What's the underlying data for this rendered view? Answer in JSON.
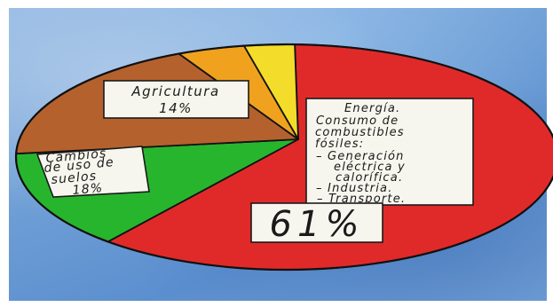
{
  "chart_data": {
    "type": "pie",
    "slices": [
      {
        "label": "Energía",
        "value": 61,
        "color": "#e02a2a"
      },
      {
        "label": "Agricultura",
        "value": 14,
        "color": "#27b52e"
      },
      {
        "label": "Cambios de uso de suelos",
        "value": 18,
        "color": "#b5612e"
      },
      {
        "label": "",
        "value": 4,
        "color": "#f0a21e"
      },
      {
        "label": "",
        "value": 3,
        "color": "#f4dc2a"
      }
    ],
    "labels": {
      "energia": {
        "lines": [
          "Energía.",
          "Consumo de",
          "combustibles",
          "fósiles:",
          "– Generación",
          "eléctrica y",
          "calorífica.",
          "– Industria.",
          "– Transporte."
        ],
        "percent": "61%"
      },
      "agricultura": {
        "lines": [
          "Agricultura",
          "14%"
        ]
      },
      "suelos": {
        "lines": [
          "Cambios",
          "de uso de",
          "suelos",
          "18%"
        ]
      }
    }
  }
}
